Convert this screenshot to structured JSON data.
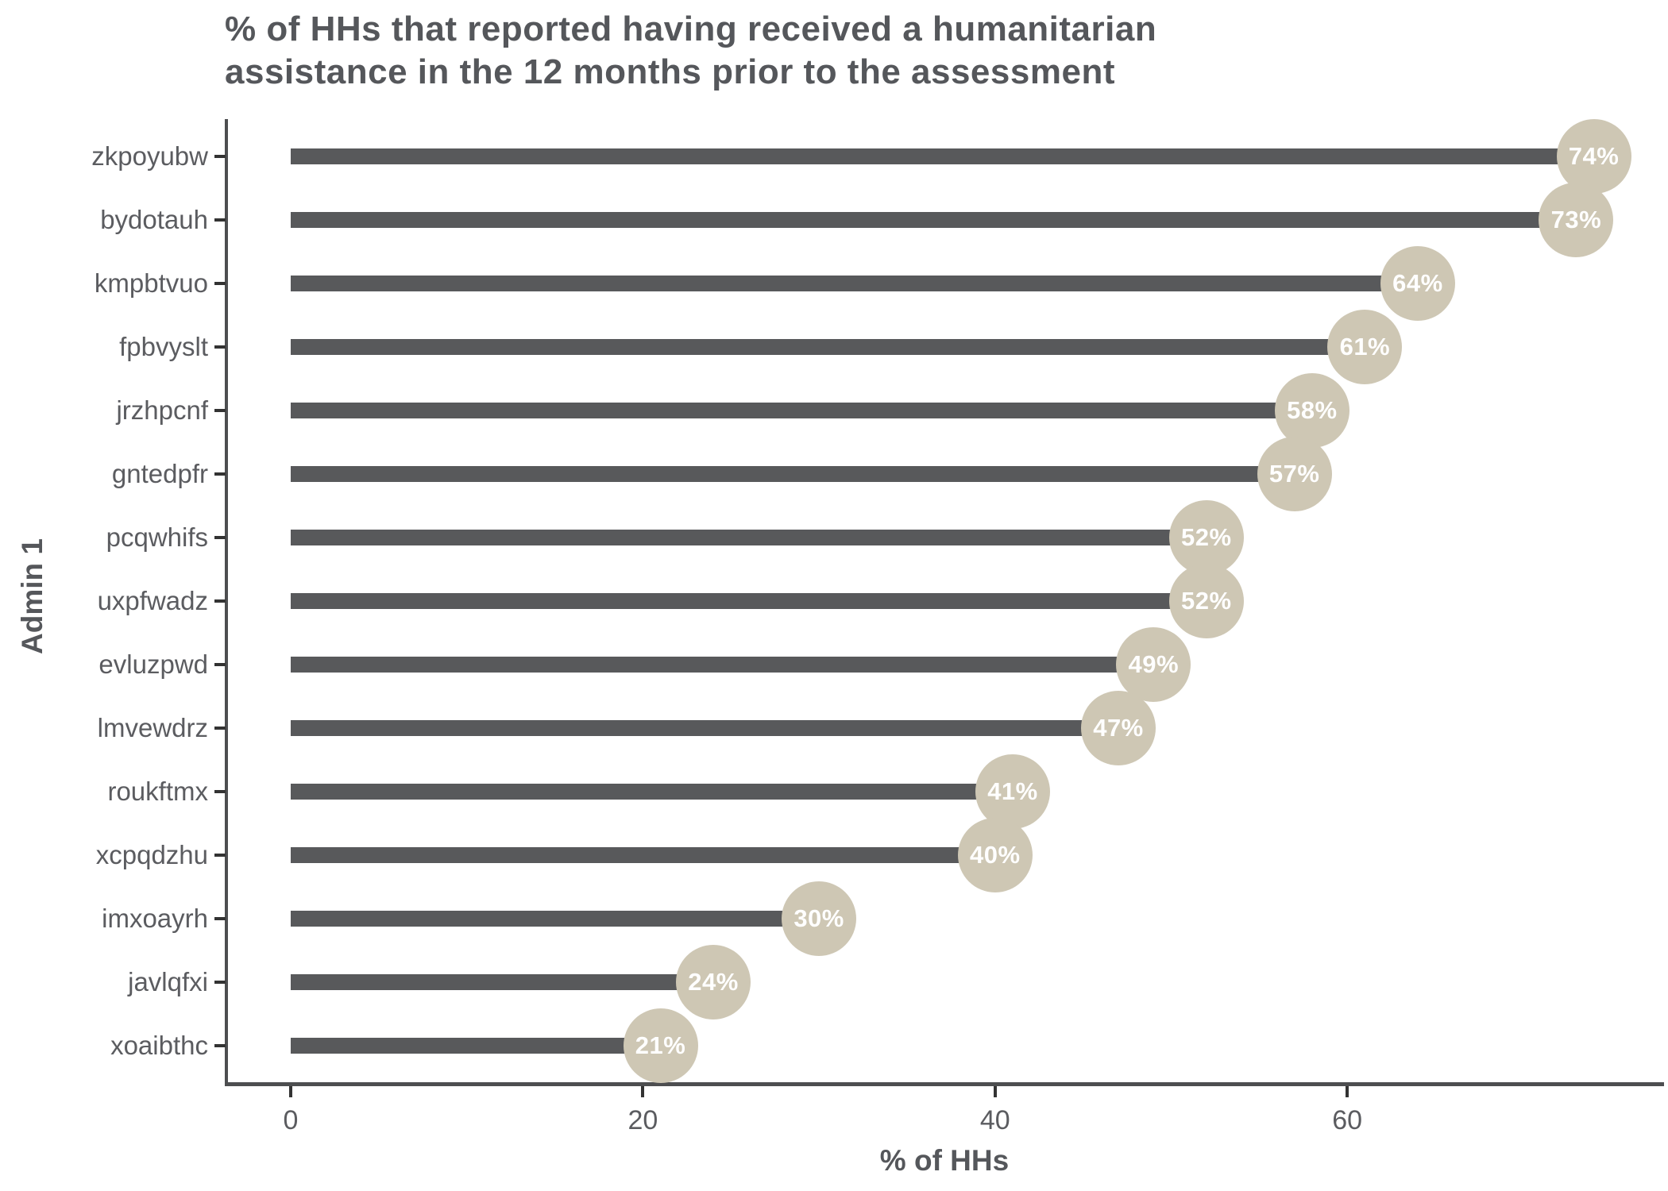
{
  "title": {
    "line1": "% of HHs that reported having received a humanitarian",
    "line2": "assistance in the 12 months prior to the assessment"
  },
  "chart_data": {
    "type": "bar",
    "orientation": "horizontal",
    "title": "% of HHs that reported having received a humanitarian assistance in the 12 months prior to the assessment",
    "xlabel": "% of HHs",
    "ylabel": "Admin 1",
    "categories": [
      "zkpoyubw",
      "bydotauh",
      "kmpbtvuo",
      "fpbvyslt",
      "jrzhpcnf",
      "gntedpfr",
      "pcqwhifs",
      "uxpfwadz",
      "evluzpwd",
      "lmvewdrz",
      "roukftmx",
      "xcpqdzhu",
      "imxoayrh",
      "javlqfxi",
      "xoaibthc"
    ],
    "values": [
      74,
      73,
      64,
      61,
      58,
      57,
      52,
      52,
      49,
      47,
      41,
      40,
      30,
      24,
      21
    ],
    "value_labels": [
      "74%",
      "73%",
      "64%",
      "61%",
      "58%",
      "57%",
      "52%",
      "52%",
      "49%",
      "47%",
      "41%",
      "40%",
      "30%",
      "24%",
      "21%"
    ],
    "unit": "%",
    "xticks": [
      0,
      20,
      40,
      60
    ],
    "xlim": [
      0,
      78
    ],
    "grid": false,
    "legend": false,
    "colors": {
      "bar": "#58595B",
      "marker": "#CEC7B4",
      "marker_text": "#FFFFFF",
      "axis_line": "#4D4E50",
      "text": "#55575B"
    }
  }
}
